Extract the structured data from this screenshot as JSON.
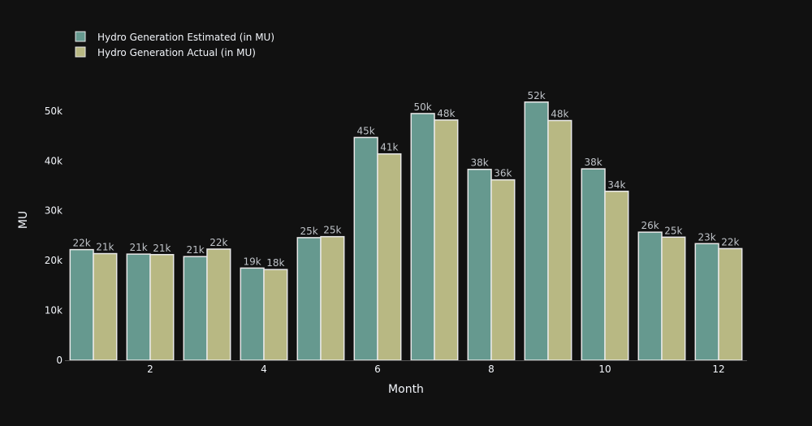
{
  "chart_data": {
    "type": "bar",
    "title": "",
    "xlabel": "Month",
    "ylabel": "MU",
    "x": [
      1,
      2,
      3,
      4,
      5,
      6,
      7,
      8,
      9,
      10,
      11,
      12
    ],
    "x_tick_values": [
      2,
      4,
      6,
      8,
      10,
      12
    ],
    "x_tick_labels": [
      "2",
      "4",
      "6",
      "8",
      "10",
      "12"
    ],
    "ylim": [
      0,
      56000
    ],
    "y_tick_values": [
      0,
      10000,
      20000,
      30000,
      40000,
      50000
    ],
    "y_tick_labels": [
      "0",
      "10k",
      "20k",
      "30k",
      "40k",
      "50k"
    ],
    "legend_position": "top-left",
    "grid": false,
    "background": "#111111",
    "series": [
      {
        "name": "Hydro Generation Estimated (in MU)",
        "color": "#66998f",
        "values": [
          22200,
          21300,
          20800,
          18500,
          24600,
          44700,
          49500,
          38300,
          51800,
          38400,
          25700,
          23400
        ],
        "labels": [
          "22k",
          "21k",
          "21k",
          "19k",
          "25k",
          "45k",
          "50k",
          "38k",
          "52k",
          "38k",
          "26k",
          "23k"
        ]
      },
      {
        "name": "Hydro Generation Actual (in MU)",
        "color": "#b8b883",
        "values": [
          21400,
          21200,
          22300,
          18200,
          24800,
          41400,
          48200,
          36200,
          48100,
          33900,
          24700,
          22400
        ],
        "labels": [
          "21k",
          "21k",
          "22k",
          "18k",
          "25k",
          "41k",
          "48k",
          "36k",
          "48k",
          "34k",
          "25k",
          "22k"
        ]
      }
    ]
  }
}
